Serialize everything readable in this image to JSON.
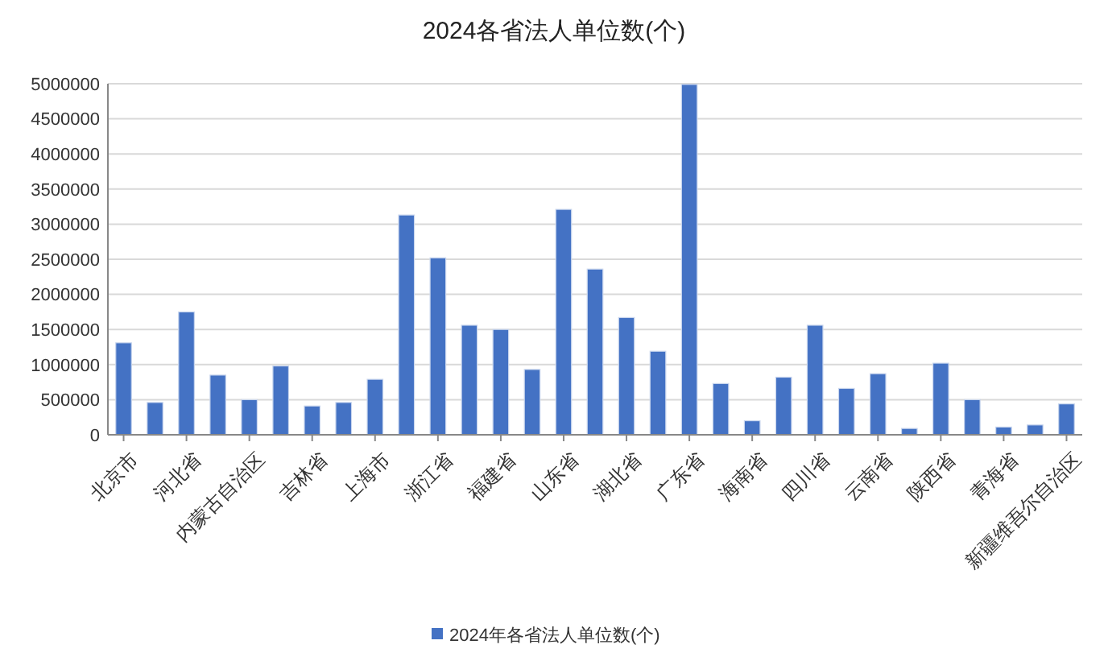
{
  "chart_data": {
    "type": "bar",
    "title": "2024各省法人单位数(个)",
    "categories": [
      "北京市",
      null,
      "河北省",
      null,
      "内蒙古自治区",
      null,
      "吉林省",
      null,
      "上海市",
      null,
      "浙江省",
      null,
      "福建省",
      null,
      "山东省",
      null,
      "湖北省",
      null,
      "广东省",
      null,
      "海南省",
      null,
      "四川省",
      null,
      "云南省",
      null,
      "陕西省",
      null,
      "青海省",
      null,
      "新疆维吾尔自治区"
    ],
    "series": [
      {
        "name": "2024年各省法人单位数(个)",
        "color": "#4472c4",
        "values": [
          1310000,
          460000,
          1750000,
          850000,
          500000,
          980000,
          410000,
          460000,
          790000,
          3130000,
          2520000,
          1560000,
          1500000,
          930000,
          3210000,
          2360000,
          1670000,
          1190000,
          4990000,
          730000,
          200000,
          820000,
          1560000,
          660000,
          870000,
          90000,
          1020000,
          500000,
          110000,
          140000,
          440000
        ]
      }
    ],
    "ylim": [
      0,
      5000000
    ],
    "yticks": [
      0,
      500000,
      1000000,
      1500000,
      2000000,
      2500000,
      3000000,
      3500000,
      4000000,
      4500000,
      5000000
    ],
    "grid": "y",
    "legend": "bottom"
  }
}
